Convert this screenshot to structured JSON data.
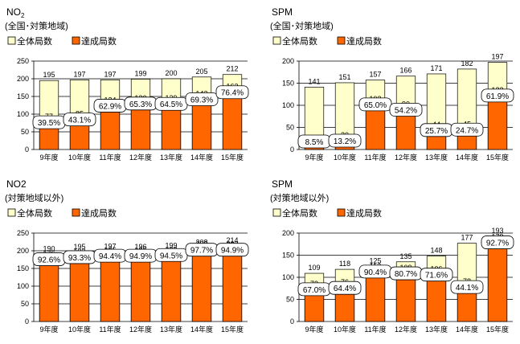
{
  "chart_data": [
    {
      "type": "bar",
      "title": "NO",
      "title_sub": "2",
      "subtitle": "(全国･対策地域)",
      "categories": [
        "9年度",
        "10年度",
        "11年度",
        "12年度",
        "13年度",
        "14年度",
        "15年度"
      ],
      "series": [
        {
          "name": "全体局数",
          "values": [
            195,
            197,
            197,
            199,
            200,
            205,
            212
          ],
          "color": "#ffffcc"
        },
        {
          "name": "達成局数",
          "values": [
            77,
            85,
            124,
            130,
            129,
            142,
            162
          ],
          "color": "#ff6600"
        }
      ],
      "rates": [
        "39.5%",
        "43.1%",
        "62.9%",
        "65.3%",
        "64.5%",
        "69.3%",
        "76.4%"
      ],
      "ylim": [
        0,
        250
      ],
      "yticks": [
        0,
        50,
        100,
        150,
        200,
        250
      ],
      "legend": "top-left",
      "grid": true
    },
    {
      "type": "bar",
      "title": "SPM",
      "title_sub": "",
      "subtitle": "(全国･対策地域)",
      "categories": [
        "9年度",
        "10年度",
        "11年度",
        "12年度",
        "13年度",
        "14年度",
        "15年度"
      ],
      "series": [
        {
          "name": "全体局数",
          "values": [
            141,
            151,
            157,
            166,
            171,
            182,
            197
          ],
          "color": "#ffffcc"
        },
        {
          "name": "達成局数",
          "values": [
            12,
            20,
            102,
            90,
            44,
            45,
            122
          ],
          "color": "#ff6600"
        }
      ],
      "rates": [
        "8.5%",
        "13.2%",
        "65.0%",
        "54.2%",
        "25.7%",
        "24.7%",
        "61.9%"
      ],
      "ylim": [
        0,
        200
      ],
      "yticks": [
        0,
        50,
        100,
        150,
        200
      ],
      "legend": "top-left",
      "grid": true
    },
    {
      "type": "bar",
      "title": "NO2",
      "title_sub": "",
      "subtitle": "(対策地域以外)",
      "categories": [
        "9年度",
        "10年度",
        "11年度",
        "12年度",
        "13年度",
        "14年度",
        "15年度"
      ],
      "series": [
        {
          "name": "全体局数",
          "values": [
            190,
            195,
            197,
            196,
            199,
            208,
            214
          ],
          "color": "#ffffcc"
        },
        {
          "name": "達成局数",
          "values": [
            176,
            182,
            186,
            186,
            188,
            203,
            203
          ],
          "color": "#ff6600"
        }
      ],
      "rates": [
        "92.6%",
        "93.3%",
        "94.4%",
        "94.9%",
        "94.5%",
        "97.7%",
        "94.9%"
      ],
      "ylim": [
        0,
        250
      ],
      "yticks": [
        0,
        50,
        100,
        150,
        200,
        250
      ],
      "legend": "top-left",
      "grid": true
    },
    {
      "type": "bar",
      "title": "SPM",
      "title_sub": "",
      "subtitle": "(対策地域以外)",
      "categories": [
        "9年度",
        "10年度",
        "11年度",
        "12年度",
        "13年度",
        "14年度",
        "15年度"
      ],
      "series": [
        {
          "name": "全体局数",
          "values": [
            109,
            118,
            125,
            135,
            148,
            177,
            193
          ],
          "color": "#ffffcc"
        },
        {
          "name": "達成局数",
          "values": [
            73,
            76,
            113,
            109,
            106,
            78,
            179
          ],
          "color": "#ff6600"
        }
      ],
      "rates": [
        "67.0%",
        "64.4%",
        "90.4%",
        "80.7%",
        "71.6%",
        "44.1%",
        "92.7%"
      ],
      "ylim": [
        0,
        200
      ],
      "yticks": [
        0,
        50,
        100,
        150,
        200
      ],
      "legend": "top-left",
      "grid": true
    }
  ]
}
